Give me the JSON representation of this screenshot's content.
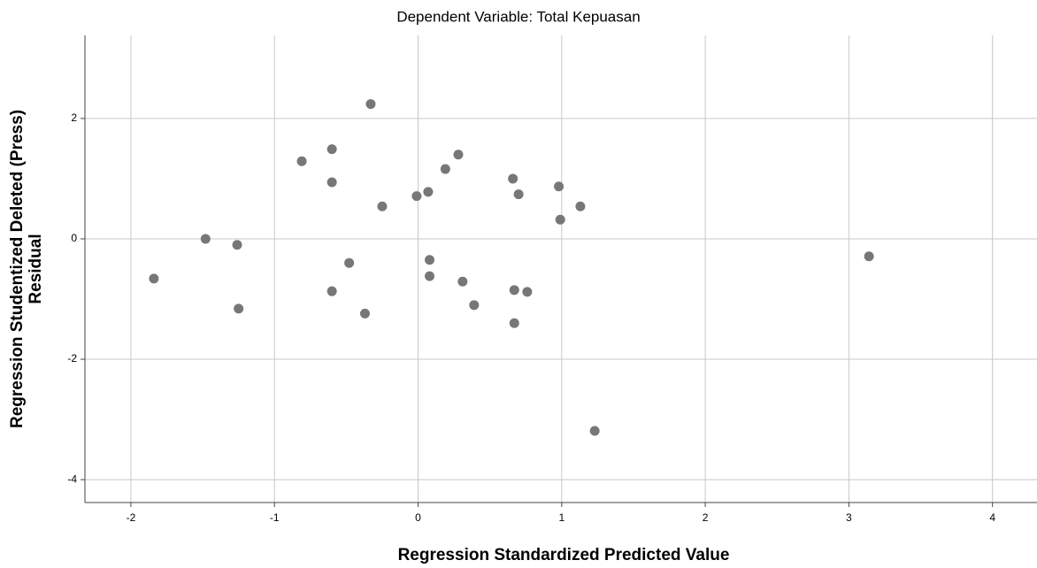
{
  "chart_data": {
    "type": "scatter",
    "title": "Dependent Variable: Total Kepuasan",
    "xlabel": "Regression Standardized Predicted Value",
    "ylabel": [
      "Regression Studentized Deleted (Press)",
      "Residual"
    ],
    "x": [
      -1.84,
      -1.48,
      -1.26,
      -1.25,
      -0.81,
      -0.6,
      -0.6,
      -0.6,
      -0.48,
      -0.37,
      -0.33,
      -0.25,
      -0.01,
      0.07,
      0.08,
      0.08,
      0.19,
      0.28,
      0.31,
      0.39,
      0.66,
      0.7,
      0.67,
      0.67,
      0.76,
      0.98,
      0.99,
      1.13,
      1.23,
      3.14
    ],
    "values": [
      -0.66,
      0,
      -0.1,
      -1.16,
      1.29,
      1.49,
      0.94,
      -0.87,
      -0.4,
      -1.24,
      2.24,
      0.54,
      0.71,
      0.78,
      -0.35,
      -0.62,
      1.16,
      1.4,
      -0.71,
      -1.1,
      1.0,
      0.74,
      -0.85,
      -1.4,
      -0.88,
      0.87,
      0.32,
      0.54,
      -3.19,
      -0.29
    ],
    "color": "#777777",
    "xlim": [
      -2.32,
      4.31
    ],
    "ylim": [
      -4.38,
      3.38
    ],
    "xticks": [
      -2,
      -1,
      0,
      1,
      2,
      3,
      4
    ],
    "yticks": [
      -4,
      -2,
      0,
      2
    ],
    "grid": true
  }
}
